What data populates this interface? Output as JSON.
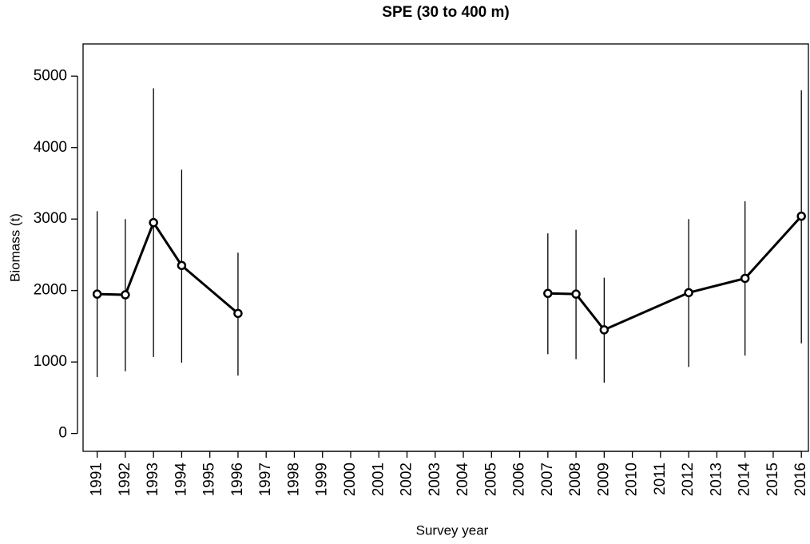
{
  "chart_data": {
    "type": "line",
    "title": "SPE (30 to 400 m)",
    "x_label": "Survey year",
    "y_label": "Biomass (t)",
    "x": [
      1991,
      1992,
      1993,
      1994,
      1996,
      null,
      2007,
      2008,
      2009,
      2012,
      2014,
      2016
    ],
    "values": [
      1950,
      1940,
      2950,
      2350,
      1680,
      null,
      1960,
      1950,
      1450,
      1970,
      2170,
      3040
    ],
    "lower": [
      790,
      870,
      1070,
      990,
      810,
      null,
      1110,
      1040,
      710,
      930,
      1090,
      1260
    ],
    "upper": [
      3110,
      3000,
      4830,
      3690,
      2530,
      null,
      2800,
      2850,
      2180,
      3000,
      3250,
      4800
    ],
    "color": "#000000",
    "xlim": [
      1990.5,
      2016.25
    ],
    "ylim": [
      -250,
      5450
    ],
    "xticks": [
      1991,
      1992,
      1993,
      1994,
      1995,
      1996,
      1997,
      1998,
      1999,
      2000,
      2001,
      2002,
      2003,
      2004,
      2005,
      2006,
      2007,
      2008,
      2009,
      2010,
      2011,
      2012,
      2013,
      2014,
      2015,
      2016
    ],
    "yticks": [
      0,
      1000,
      2000,
      3000,
      4000,
      5000
    ]
  }
}
